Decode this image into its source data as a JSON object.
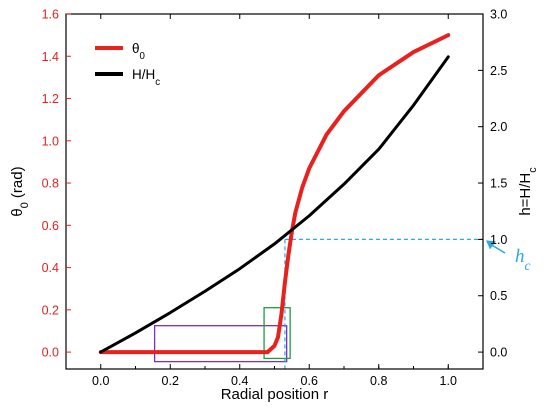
{
  "chart_data": {
    "type": "line",
    "xlabel": "Radial position r",
    "ylabel_left": {
      "main": "θ",
      "sub": "0",
      "rest": " (rad)"
    },
    "ylabel_right": {
      "main": "h=H/H",
      "sub": "c"
    },
    "xlim": [
      -0.1,
      1.1
    ],
    "ylim_left": [
      -0.08,
      1.6
    ],
    "ylim_right": [
      -0.15,
      3.0
    ],
    "x_ticks": [
      "0.0",
      "0.2",
      "0.4",
      "0.6",
      "0.8",
      "1.0"
    ],
    "y_left_ticks": [
      "0.0",
      "0.2",
      "0.4",
      "0.6",
      "0.8",
      "1.0",
      "1.2",
      "1.4",
      "1.6"
    ],
    "y_right_ticks": [
      "0.0",
      "0.5",
      "1.0",
      "1.5",
      "2.0",
      "2.5",
      "3.0"
    ],
    "legend": [
      {
        "main": "θ",
        "sub": "0",
        "color": "#e8211d"
      },
      {
        "main": "H/H",
        "sub": "c",
        "color": "#000000"
      }
    ],
    "legend_position": "top-left",
    "series": [
      {
        "axis": "left",
        "color": "#e8211d",
        "x": [
          0.0,
          0.1,
          0.2,
          0.3,
          0.4,
          0.48,
          0.5,
          0.51,
          0.52,
          0.53,
          0.54,
          0.55,
          0.56,
          0.58,
          0.6,
          0.65,
          0.7,
          0.8,
          0.9,
          1.0
        ],
        "y": [
          0.0,
          0.0,
          0.0,
          0.0,
          0.0,
          0.0,
          0.03,
          0.07,
          0.18,
          0.33,
          0.46,
          0.57,
          0.66,
          0.78,
          0.87,
          1.03,
          1.14,
          1.31,
          1.42,
          1.5
        ]
      },
      {
        "axis": "right",
        "color": "#000000",
        "x": [
          0.0,
          0.1,
          0.2,
          0.3,
          0.4,
          0.5,
          0.6,
          0.7,
          0.8,
          0.9,
          1.0
        ],
        "y": [
          0.0,
          0.17,
          0.35,
          0.54,
          0.74,
          0.96,
          1.21,
          1.49,
          1.8,
          2.19,
          2.62
        ]
      }
    ],
    "annotations": {
      "hc_label": {
        "main": "h",
        "sub": "c"
      },
      "hc_value": 1.0,
      "hc_r": 0.53,
      "arrow_color": "#2ca8e0",
      "boxes": [
        {
          "color": "#7a2fbf",
          "x0": 0.155,
          "x1": 0.535,
          "y0": -0.045,
          "y1": 0.125
        },
        {
          "color": "#1a9e3f",
          "x0": 0.47,
          "x1": 0.545,
          "y0": -0.03,
          "y1": 0.21
        }
      ]
    }
  }
}
